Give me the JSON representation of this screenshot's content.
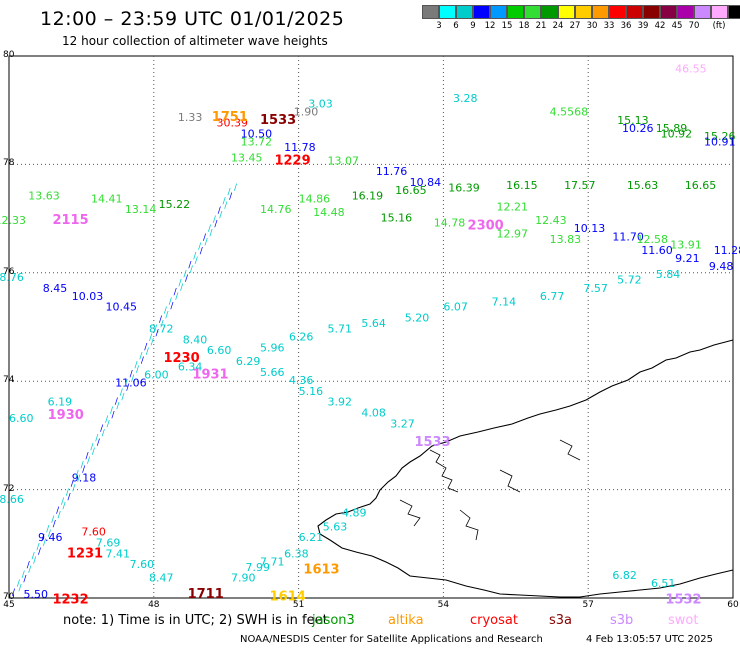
{
  "header": {
    "title": "12:00 – 23:59 UTC 01/01/2025",
    "subtitle": "12 hour collection of altimeter wave heights"
  },
  "scale": {
    "colors": [
      "#7a7a7a",
      "#00ffff",
      "#00cccc",
      "#0000ff",
      "#0099ff",
      "#00cc00",
      "#33dd33",
      "#009900",
      "#ffff00",
      "#ffcc00",
      "#ff9900",
      "#ff0000",
      "#cc0000",
      "#880000",
      "#880044",
      "#aa00aa",
      "#cc88ff",
      "#ffaaff",
      "#000000"
    ],
    "labels": [
      "3",
      "6",
      "9",
      "12",
      "15",
      "18",
      "21",
      "24",
      "27",
      "30",
      "33",
      "36",
      "39",
      "42",
      "45",
      "70",
      "(ft)"
    ]
  },
  "axes": {
    "y_ticks": [
      "80",
      "78",
      "76",
      "74",
      "72",
      "70"
    ],
    "x_ticks": [
      "45",
      "48",
      "51",
      "54",
      "57",
      "60"
    ]
  },
  "chart_data": {
    "type": "scatter",
    "title": "12 hour collection of altimeter wave heights",
    "xlim": [
      45,
      60
    ],
    "ylim": [
      70,
      80
    ],
    "time_labels": [
      {
        "text": "1751",
        "lon": 49.2,
        "lat": 78.8,
        "color": "#ff9900"
      },
      {
        "text": "1533",
        "lon": 50.2,
        "lat": 78.75,
        "color": "#880000"
      },
      {
        "text": "1229",
        "lon": 50.5,
        "lat": 78.0,
        "color": "#ff0000"
      },
      {
        "text": "2115",
        "lon": 45.9,
        "lat": 76.9,
        "color": "#ee66ee"
      },
      {
        "text": "2300",
        "lon": 54.5,
        "lat": 76.8,
        "color": "#ee66ee"
      },
      {
        "text": "1230",
        "lon": 48.2,
        "lat": 74.35,
        "color": "#ff0000"
      },
      {
        "text": "1931",
        "lon": 48.8,
        "lat": 74.05,
        "color": "#ee66ee"
      },
      {
        "text": "1930",
        "lon": 45.8,
        "lat": 73.3,
        "color": "#ee66ee"
      },
      {
        "text": "1533",
        "lon": 53.4,
        "lat": 72.8,
        "color": "#cc88ff"
      },
      {
        "text": "1231",
        "lon": 46.2,
        "lat": 70.75,
        "color": "#ff0000"
      },
      {
        "text": "1613",
        "lon": 51.1,
        "lat": 70.45,
        "color": "#ff9900"
      },
      {
        "text": "1232",
        "lon": 45.9,
        "lat": 69.9,
        "color": "#ff0000"
      },
      {
        "text": "1711",
        "lon": 48.7,
        "lat": 70.0,
        "color": "#880000"
      },
      {
        "text": "1614",
        "lon": 50.4,
        "lat": 69.95,
        "color": "#ffcc00"
      },
      {
        "text": "1532",
        "lon": 58.6,
        "lat": 69.9,
        "color": "#cc88ff"
      }
    ],
    "swh": [
      {
        "v": "46.55",
        "lon": 58.8,
        "lat": 79.7,
        "c": "#ffaaff"
      },
      {
        "v": "3.03",
        "lon": 51.2,
        "lat": 79.05,
        "c": "#00cccc"
      },
      {
        "v": "3.28",
        "lon": 54.2,
        "lat": 79.15,
        "c": "#00cccc"
      },
      {
        "v": "1.90",
        "lon": 50.9,
        "lat": 78.9,
        "c": "#7a7a7a"
      },
      {
        "v": "4.5568",
        "lon": 56.2,
        "lat": 78.9,
        "c": "#33dd33"
      },
      {
        "v": "15.13",
        "lon": 57.6,
        "lat": 78.75,
        "c": "#009900"
      },
      {
        "v": "10.26",
        "lon": 57.7,
        "lat": 78.6,
        "c": "#0000ff"
      },
      {
        "v": "15.89",
        "lon": 58.4,
        "lat": 78.6,
        "c": "#009900"
      },
      {
        "v": "10.92",
        "lon": 58.5,
        "lat": 78.5,
        "c": "#009900"
      },
      {
        "v": "15.26",
        "lon": 59.4,
        "lat": 78.45,
        "c": "#009900"
      },
      {
        "v": "10.91",
        "lon": 59.4,
        "lat": 78.35,
        "c": "#0000ff"
      },
      {
        "v": "1.33",
        "lon": 48.5,
        "lat": 78.8,
        "c": "#7a7a7a"
      },
      {
        "v": "30.39",
        "lon": 49.3,
        "lat": 78.7,
        "c": "#ff0000"
      },
      {
        "v": "10.50",
        "lon": 49.8,
        "lat": 78.5,
        "c": "#0000ff"
      },
      {
        "v": "13.72",
        "lon": 49.8,
        "lat": 78.35,
        "c": "#33dd33"
      },
      {
        "v": "11.78",
        "lon": 50.7,
        "lat": 78.25,
        "c": "#0000ff"
      },
      {
        "v": "13.45",
        "lon": 49.6,
        "lat": 78.05,
        "c": "#33dd33"
      },
      {
        "v": "13.07",
        "lon": 51.6,
        "lat": 78.0,
        "c": "#33dd33"
      },
      {
        "v": "11.76",
        "lon": 52.6,
        "lat": 77.8,
        "c": "#0000ff"
      },
      {
        "v": "10.84",
        "lon": 53.3,
        "lat": 77.6,
        "c": "#0000ff"
      },
      {
        "v": "16.39",
        "lon": 54.1,
        "lat": 77.5,
        "c": "#009900"
      },
      {
        "v": "16.15",
        "lon": 55.3,
        "lat": 77.55,
        "c": "#009900"
      },
      {
        "v": "17.57",
        "lon": 56.5,
        "lat": 77.55,
        "c": "#009900"
      },
      {
        "v": "15.63",
        "lon": 57.8,
        "lat": 77.55,
        "c": "#009900"
      },
      {
        "v": "16.65",
        "lon": 59.0,
        "lat": 77.55,
        "c": "#009900"
      },
      {
        "v": "13.63",
        "lon": 45.4,
        "lat": 77.35,
        "c": "#33dd33"
      },
      {
        "v": "14.41",
        "lon": 46.7,
        "lat": 77.3,
        "c": "#33dd33"
      },
      {
        "v": "15.22",
        "lon": 48.1,
        "lat": 77.2,
        "c": "#009900"
      },
      {
        "v": "14.86",
        "lon": 51.0,
        "lat": 77.3,
        "c": "#33dd33"
      },
      {
        "v": "16.19",
        "lon": 52.1,
        "lat": 77.35,
        "c": "#009900"
      },
      {
        "v": "16.65",
        "lon": 53.0,
        "lat": 77.45,
        "c": "#009900"
      },
      {
        "v": "13.14",
        "lon": 47.4,
        "lat": 77.1,
        "c": "#33dd33"
      },
      {
        "v": "12.33",
        "lon": 44.7,
        "lat": 76.9,
        "c": "#33dd33"
      },
      {
        "v": "14.76",
        "lon": 50.2,
        "lat": 77.1,
        "c": "#33dd33"
      },
      {
        "v": "14.48",
        "lon": 51.3,
        "lat": 77.05,
        "c": "#33dd33"
      },
      {
        "v": "15.16",
        "lon": 52.7,
        "lat": 76.95,
        "c": "#009900"
      },
      {
        "v": "14.78",
        "lon": 53.8,
        "lat": 76.85,
        "c": "#33dd33"
      },
      {
        "v": "12.21",
        "lon": 55.1,
        "lat": 77.15,
        "c": "#33dd33"
      },
      {
        "v": "12.43",
        "lon": 55.9,
        "lat": 76.9,
        "c": "#33dd33"
      },
      {
        "v": "12.97",
        "lon": 55.1,
        "lat": 76.65,
        "c": "#33dd33"
      },
      {
        "v": "10.13",
        "lon": 56.7,
        "lat": 76.75,
        "c": "#0000ff"
      },
      {
        "v": "13.83",
        "lon": 56.2,
        "lat": 76.55,
        "c": "#33dd33"
      },
      {
        "v": "11.70",
        "lon": 57.5,
        "lat": 76.6,
        "c": "#0000ff"
      },
      {
        "v": "12.58",
        "lon": 58.0,
        "lat": 76.55,
        "c": "#33dd33"
      },
      {
        "v": "13.91",
        "lon": 58.7,
        "lat": 76.45,
        "c": "#33dd33"
      },
      {
        "v": "11.60",
        "lon": 58.1,
        "lat": 76.35,
        "c": "#0000ff"
      },
      {
        "v": "9.21",
        "lon": 58.8,
        "lat": 76.2,
        "c": "#0000ff"
      },
      {
        "v": "11.28",
        "lon": 59.6,
        "lat": 76.35,
        "c": "#0000ff"
      },
      {
        "v": "9.48",
        "lon": 59.5,
        "lat": 76.05,
        "c": "#0000ff"
      },
      {
        "v": "8.76",
        "lon": 44.8,
        "lat": 75.85,
        "c": "#00cccc"
      },
      {
        "v": "8.45",
        "lon": 45.7,
        "lat": 75.65,
        "c": "#0000ff"
      },
      {
        "v": "10.03",
        "lon": 46.3,
        "lat": 75.5,
        "c": "#0000ff"
      },
      {
        "v": "10.45",
        "lon": 47.0,
        "lat": 75.3,
        "c": "#0000ff"
      },
      {
        "v": "5.72",
        "lon": 57.6,
        "lat": 75.8,
        "c": "#00cccc"
      },
      {
        "v": "5.84",
        "lon": 58.4,
        "lat": 75.9,
        "c": "#00cccc"
      },
      {
        "v": "7.57",
        "lon": 56.9,
        "lat": 75.65,
        "c": "#00cccc"
      },
      {
        "v": "6.77",
        "lon": 56.0,
        "lat": 75.5,
        "c": "#00cccc"
      },
      {
        "v": "7.14",
        "lon": 55.0,
        "lat": 75.4,
        "c": "#00cccc"
      },
      {
        "v": "6.07",
        "lon": 54.0,
        "lat": 75.3,
        "c": "#00cccc"
      },
      {
        "v": "5.20",
        "lon": 53.2,
        "lat": 75.1,
        "c": "#00cccc"
      },
      {
        "v": "5.64",
        "lon": 52.3,
        "lat": 75.0,
        "c": "#00cccc"
      },
      {
        "v": "5.71",
        "lon": 51.6,
        "lat": 74.9,
        "c": "#00cccc"
      },
      {
        "v": "6.26",
        "lon": 50.8,
        "lat": 74.75,
        "c": "#00cccc"
      },
      {
        "v": "8.72",
        "lon": 47.9,
        "lat": 74.9,
        "c": "#00cccc"
      },
      {
        "v": "8.40",
        "lon": 48.6,
        "lat": 74.7,
        "c": "#00cccc"
      },
      {
        "v": "6.60",
        "lon": 49.1,
        "lat": 74.5,
        "c": "#00cccc"
      },
      {
        "v": "5.96",
        "lon": 50.2,
        "lat": 74.55,
        "c": "#00cccc"
      },
      {
        "v": "6.29",
        "lon": 49.7,
        "lat": 74.3,
        "c": "#00cccc"
      },
      {
        "v": "6.34",
        "lon": 48.5,
        "lat": 74.2,
        "c": "#00cccc"
      },
      {
        "v": "6.00",
        "lon": 47.8,
        "lat": 74.05,
        "c": "#00cccc"
      },
      {
        "v": "5.66",
        "lon": 50.2,
        "lat": 74.1,
        "c": "#00cccc"
      },
      {
        "v": "4.36",
        "lon": 50.8,
        "lat": 73.95,
        "c": "#00cccc"
      },
      {
        "v": "5.16",
        "lon": 51.0,
        "lat": 73.75,
        "c": "#00cccc"
      },
      {
        "v": "3.92",
        "lon": 51.6,
        "lat": 73.55,
        "c": "#00cccc"
      },
      {
        "v": "4.08",
        "lon": 52.3,
        "lat": 73.35,
        "c": "#00cccc"
      },
      {
        "v": "3.27",
        "lon": 52.9,
        "lat": 73.15,
        "c": "#00cccc"
      },
      {
        "v": "11.06",
        "lon": 47.2,
        "lat": 73.9,
        "c": "#0000ff"
      },
      {
        "v": "6.19",
        "lon": 45.8,
        "lat": 73.55,
        "c": "#00cccc"
      },
      {
        "v": "6.60",
        "lon": 45.0,
        "lat": 73.25,
        "c": "#00cccc"
      },
      {
        "v": "9.18",
        "lon": 46.3,
        "lat": 72.15,
        "c": "#0000ff"
      },
      {
        "v": "8.66",
        "lon": 44.8,
        "lat": 71.75,
        "c": "#00cccc"
      },
      {
        "v": "5.63",
        "lon": 51.5,
        "lat": 71.25,
        "c": "#00cccc"
      },
      {
        "v": "4.89",
        "lon": 51.9,
        "lat": 71.5,
        "c": "#00cccc"
      },
      {
        "v": "6.21",
        "lon": 51.0,
        "lat": 71.05,
        "c": "#00cccc"
      },
      {
        "v": "6.38",
        "lon": 50.7,
        "lat": 70.75,
        "c": "#00cccc"
      },
      {
        "v": "9.46",
        "lon": 45.6,
        "lat": 71.05,
        "c": "#0000ff"
      },
      {
        "v": "7.60",
        "lon": 46.5,
        "lat": 71.15,
        "c": "#ff0000"
      },
      {
        "v": "7.69",
        "lon": 46.8,
        "lat": 70.95,
        "c": "#00cccc"
      },
      {
        "v": "7.41",
        "lon": 47.0,
        "lat": 70.75,
        "c": "#00cccc"
      },
      {
        "v": "7.60",
        "lon": 47.5,
        "lat": 70.55,
        "c": "#00cccc"
      },
      {
        "v": "8.47",
        "lon": 47.9,
        "lat": 70.3,
        "c": "#00cccc"
      },
      {
        "v": "7.99",
        "lon": 49.9,
        "lat": 70.5,
        "c": "#00cccc"
      },
      {
        "v": "7.71",
        "lon": 50.2,
        "lat": 70.6,
        "c": "#00cccc"
      },
      {
        "v": "7.90",
        "lon": 49.6,
        "lat": 70.3,
        "c": "#00cccc"
      },
      {
        "v": "6.51",
        "lon": 58.3,
        "lat": 70.2,
        "c": "#00cccc"
      },
      {
        "v": "6.82",
        "lon": 57.5,
        "lat": 70.35,
        "c": "#00cccc"
      },
      {
        "v": "5.50",
        "lon": 45.3,
        "lat": 70.0,
        "c": "#0000ff"
      }
    ]
  },
  "footer": {
    "note": "note:  1) Time is in UTC;  2) SWH is in feet",
    "satellites": [
      {
        "name": "jason3",
        "color": "#009900"
      },
      {
        "name": "altika",
        "color": "#ff9900"
      },
      {
        "name": "cryosat",
        "color": "#ff0000"
      },
      {
        "name": "s3a",
        "color": "#880000"
      },
      {
        "name": "s3b",
        "color": "#cc88ff"
      },
      {
        "name": "swot",
        "color": "#ffaaff"
      }
    ],
    "credit": "NOAA/NESDIS Center for Satellite Applications and Research",
    "timestamp": "4 Feb 13:05:57 UTC 2025"
  }
}
